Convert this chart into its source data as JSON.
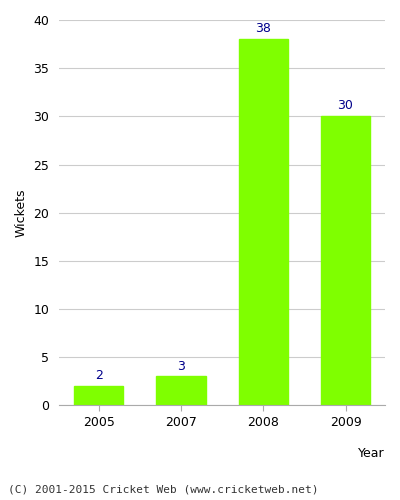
{
  "categories": [
    "2005",
    "2007",
    "2008",
    "2009"
  ],
  "values": [
    2,
    3,
    38,
    30
  ],
  "bar_color": "#7FFF00",
  "bar_edgecolor": "#7FFF00",
  "ylabel": "Wickets",
  "xlabel": "Year",
  "ylim": [
    0,
    40
  ],
  "yticks": [
    0,
    5,
    10,
    15,
    20,
    25,
    30,
    35,
    40
  ],
  "annotation_color": "#00008B",
  "annotation_fontsize": 9,
  "xlabel_fontsize": 9,
  "ylabel_fontsize": 9,
  "tick_fontsize": 9,
  "footer_text": "(C) 2001-2015 Cricket Web (www.cricketweb.net)",
  "footer_fontsize": 8,
  "background_color": "#ffffff",
  "plot_background_color": "#ffffff",
  "grid_color": "#cccccc"
}
